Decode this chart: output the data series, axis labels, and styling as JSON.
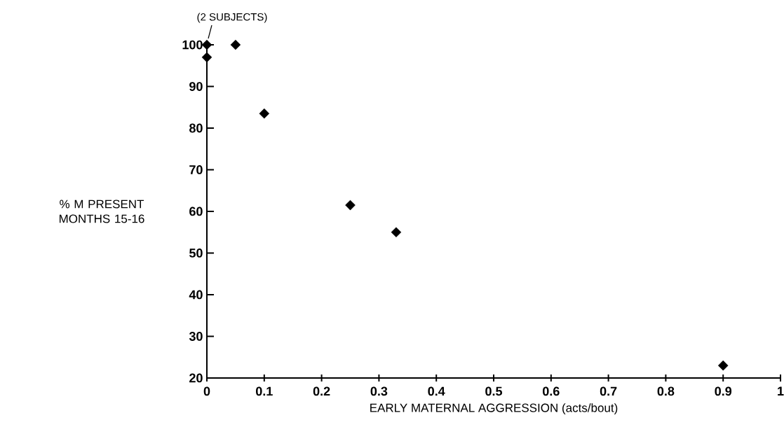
{
  "chart_data": {
    "type": "scatter",
    "xlabel": "EARLY MATERNAL AGGRESSION (acts/bout)",
    "ylabel": "% M PRESENT MONTHS 15-16",
    "x": [
      0,
      0,
      0.05,
      0.1,
      0.25,
      0.33,
      0.9
    ],
    "values": [
      100,
      97,
      100,
      83.5,
      61.5,
      55,
      23
    ],
    "color": "#000000",
    "marker": "diamond",
    "xlim": [
      0,
      1
    ],
    "ylim": [
      20,
      100
    ],
    "xticks": [
      0,
      0.1,
      0.2,
      0.3,
      0.4,
      0.5,
      0.6,
      0.7,
      0.8,
      0.9,
      1
    ],
    "yticks": [
      20,
      30,
      40,
      50,
      60,
      70,
      80,
      90,
      100
    ],
    "annotations": [
      {
        "text": "(2 SUBJECTS)",
        "x": 0,
        "y": 100
      }
    ]
  }
}
